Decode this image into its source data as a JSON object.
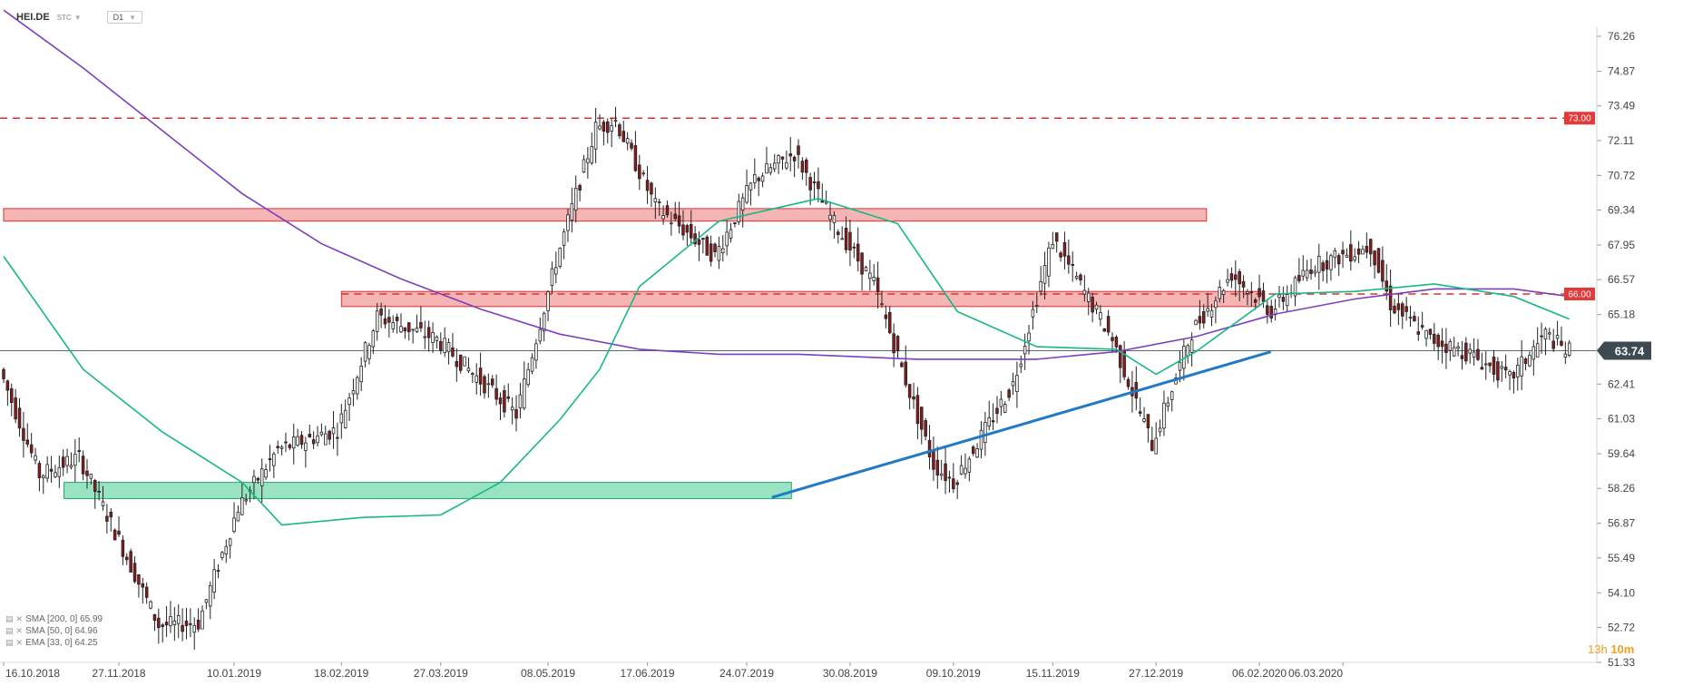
{
  "header": {
    "symbol": "HEI.DE",
    "source": "STC",
    "timeframe": "D1"
  },
  "legend": [
    {
      "label": "SMA [200, 0] 65.99"
    },
    {
      "label": "SMA [50, 0] 64.96"
    },
    {
      "label": "EMA [33, 0] 64.25"
    }
  ],
  "timer": {
    "hours": "13h",
    "minutes": "10m"
  },
  "colors": {
    "up": "#ffffff",
    "down": "#8b1a1a",
    "wick": "#222222",
    "sma200": "#7b3fc0",
    "sma50": "#16b884",
    "trend": "#1f7ac8",
    "resistance": "#e03030",
    "zone_red": "#f4a3a3",
    "zone_green": "#7fdcb3",
    "current": "#5a6b73"
  },
  "chart_data": {
    "type": "candlestick",
    "y_ticks": [
      "76.26",
      "74.87",
      "73.49",
      "72.11",
      "70.72",
      "69.34",
      "67.95",
      "66.57",
      "65.18",
      "63.80",
      "62.41",
      "61.03",
      "59.64",
      "58.26",
      "56.87",
      "55.49",
      "54.10",
      "52.72",
      "51.33"
    ],
    "x_ticks": [
      "16.10.2018",
      "27.11.2018",
      "10.01.2019",
      "18.02.2019",
      "27.03.2019",
      "08.05.2019",
      "17.06.2019",
      "24.07.2019",
      "30.08.2019",
      "09.10.2019",
      "15.11.2019",
      "27.12.2019",
      "06.02.2020",
      "06.03.2020"
    ],
    "ylim": [
      51.33,
      76.26
    ],
    "current_price": "63.74",
    "resistance_levels": [
      {
        "value": 73.0,
        "label": "73.00"
      },
      {
        "value": 66.0,
        "label": "66.00"
      }
    ],
    "zones": [
      {
        "from_date": "16.10.2018",
        "to_date": "16.01.2020",
        "low": 68.9,
        "high": 69.4,
        "type": "resistance"
      },
      {
        "from_date": "18.02.2019",
        "to_date": "06.02.2020",
        "low": 65.5,
        "high": 66.1,
        "type": "resistance"
      },
      {
        "from_date": "07.11.2018",
        "to_date": "09.08.2019",
        "low": 57.85,
        "high": 58.5,
        "type": "support"
      }
    ],
    "trendline": {
      "from": {
        "date": "02.08.2019",
        "value": 57.9
      },
      "to": {
        "date": "10.02.2020",
        "value": 63.7
      }
    },
    "sma200_path": [
      [
        0,
        77.3
      ],
      [
        20,
        75.0
      ],
      [
        40,
        72.5
      ],
      [
        60,
        70.0
      ],
      [
        80,
        68.0
      ],
      [
        100,
        66.6
      ],
      [
        120,
        65.4
      ],
      [
        140,
        64.4
      ],
      [
        160,
        63.8
      ],
      [
        180,
        63.6
      ],
      [
        200,
        63.6
      ],
      [
        230,
        63.4
      ],
      [
        260,
        63.4
      ],
      [
        280,
        63.7
      ],
      [
        300,
        64.3
      ],
      [
        320,
        65.2
      ],
      [
        340,
        65.8
      ],
      [
        360,
        66.2
      ],
      [
        380,
        66.2
      ],
      [
        394,
        65.9
      ]
    ],
    "sma50_path": [
      [
        0,
        67.5
      ],
      [
        20,
        63.0
      ],
      [
        40,
        60.5
      ],
      [
        60,
        58.5
      ],
      [
        70,
        56.8
      ],
      [
        90,
        57.1
      ],
      [
        110,
        57.2
      ],
      [
        125,
        58.5
      ],
      [
        140,
        61.0
      ],
      [
        150,
        63.0
      ],
      [
        160,
        66.3
      ],
      [
        180,
        68.9
      ],
      [
        205,
        69.8
      ],
      [
        225,
        68.8
      ],
      [
        240,
        65.3
      ],
      [
        260,
        63.9
      ],
      [
        280,
        63.8
      ],
      [
        290,
        62.8
      ],
      [
        300,
        63.7
      ],
      [
        320,
        66.0
      ],
      [
        340,
        66.1
      ],
      [
        360,
        66.4
      ],
      [
        380,
        65.9
      ],
      [
        394,
        65.0
      ]
    ],
    "price_path": [
      [
        0,
        63.0
      ],
      [
        10,
        58.8
      ],
      [
        20,
        59.5
      ],
      [
        30,
        56.2
      ],
      [
        40,
        52.8
      ],
      [
        50,
        52.9
      ],
      [
        60,
        57.5
      ],
      [
        70,
        59.8
      ],
      [
        85,
        60.6
      ],
      [
        95,
        65.1
      ],
      [
        110,
        64.2
      ],
      [
        130,
        61.2
      ],
      [
        140,
        67.3
      ],
      [
        150,
        72.6
      ],
      [
        155,
        72.9
      ],
      [
        165,
        69.5
      ],
      [
        180,
        67.5
      ],
      [
        190,
        70.6
      ],
      [
        200,
        71.6
      ],
      [
        210,
        68.8
      ],
      [
        220,
        66.4
      ],
      [
        235,
        59.2
      ],
      [
        240,
        58.5
      ],
      [
        255,
        62.4
      ],
      [
        265,
        68.2
      ],
      [
        280,
        64.2
      ],
      [
        290,
        60.0
      ],
      [
        300,
        64.5
      ],
      [
        310,
        66.8
      ],
      [
        320,
        65.3
      ],
      [
        330,
        67.1
      ],
      [
        345,
        67.9
      ],
      [
        350,
        65.6
      ],
      [
        360,
        64.2
      ],
      [
        370,
        63.6
      ],
      [
        380,
        62.6
      ],
      [
        389,
        64.4
      ],
      [
        394,
        63.74
      ]
    ]
  }
}
